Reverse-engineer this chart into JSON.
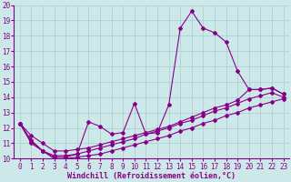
{
  "bg_color": "#cce8e8",
  "grid_color": "#aacccc",
  "line_color": "#880088",
  "marker": "D",
  "markersize": 2,
  "linewidth": 0.8,
  "xlabel": "Windchill (Refroidissement éolien,°C)",
  "xlabel_fontsize": 6,
  "tick_fontsize": 5.5,
  "xlim": [
    -0.5,
    23.5
  ],
  "ylim": [
    10,
    20
  ],
  "yticks": [
    10,
    11,
    12,
    13,
    14,
    15,
    16,
    17,
    18,
    19,
    20
  ],
  "xticks": [
    0,
    1,
    2,
    3,
    4,
    5,
    6,
    7,
    8,
    9,
    10,
    11,
    12,
    13,
    14,
    15,
    16,
    17,
    18,
    19,
    20,
    21,
    22,
    23
  ],
  "series": [
    {
      "x": [
        0,
        1,
        2,
        3,
        4,
        5,
        6,
        7,
        8,
        9,
        10,
        11,
        12,
        13,
        14,
        15,
        16,
        17,
        18,
        19,
        20,
        21,
        22,
        23
      ],
      "y": [
        12.3,
        11.1,
        10.5,
        10.1,
        10.1,
        10.3,
        12.4,
        12.1,
        11.6,
        11.7,
        13.6,
        11.6,
        11.7,
        13.5,
        18.5,
        19.6,
        18.5,
        18.2,
        17.6,
        15.7,
        14.5,
        14.5,
        14.6,
        14.2
      ]
    },
    {
      "x": [
        0,
        1,
        2,
        3,
        4,
        5,
        6,
        7,
        8,
        9,
        10,
        11,
        12,
        13,
        14,
        15,
        16,
        17,
        18,
        19,
        20,
        21,
        22,
        23
      ],
      "y": [
        12.3,
        11.5,
        11.0,
        10.5,
        10.5,
        10.6,
        10.7,
        10.9,
        11.1,
        11.3,
        11.5,
        11.7,
        11.9,
        12.1,
        12.4,
        12.7,
        13.0,
        13.3,
        13.5,
        13.8,
        14.5,
        14.5,
        14.6,
        14.2
      ]
    },
    {
      "x": [
        0,
        1,
        2,
        3,
        4,
        5,
        6,
        7,
        8,
        9,
        10,
        11,
        12,
        13,
        14,
        15,
        16,
        17,
        18,
        19,
        20,
        21,
        22,
        23
      ],
      "y": [
        12.3,
        11.2,
        10.5,
        10.2,
        10.2,
        10.3,
        10.5,
        10.7,
        10.9,
        11.1,
        11.3,
        11.6,
        11.8,
        12.0,
        12.3,
        12.5,
        12.8,
        13.1,
        13.3,
        13.6,
        13.9,
        14.1,
        14.3,
        14.0
      ]
    },
    {
      "x": [
        0,
        1,
        2,
        3,
        4,
        5,
        6,
        7,
        8,
        9,
        10,
        11,
        12,
        13,
        14,
        15,
        16,
        17,
        18,
        19,
        20,
        21,
        22,
        23
      ],
      "y": [
        12.3,
        11.0,
        10.5,
        10.0,
        10.0,
        10.1,
        10.2,
        10.3,
        10.5,
        10.7,
        10.9,
        11.1,
        11.3,
        11.5,
        11.8,
        12.0,
        12.3,
        12.5,
        12.8,
        13.0,
        13.3,
        13.5,
        13.7,
        13.9
      ]
    }
  ]
}
